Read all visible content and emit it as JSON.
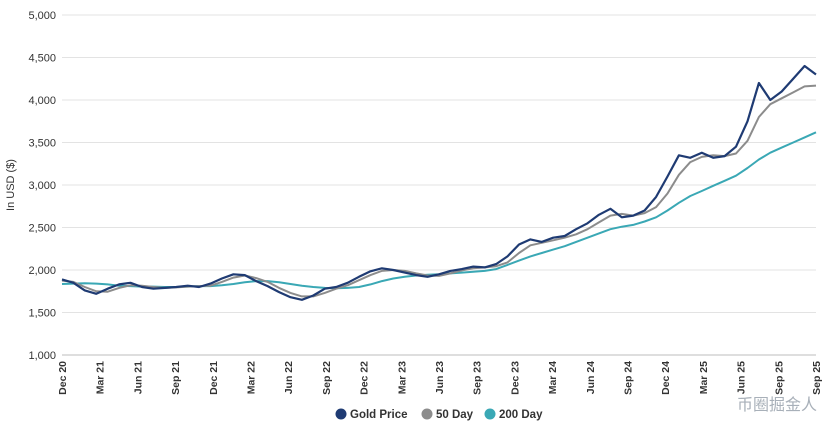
{
  "chart_data": {
    "type": "line",
    "title": "",
    "ylabel": "In USD ($)",
    "xlabel": "",
    "ylim": [
      1000,
      5000
    ],
    "y_ticks": [
      "1,000",
      "1,500",
      "2,000",
      "2,500",
      "3,000",
      "3,500",
      "4,000",
      "4,500",
      "5,000"
    ],
    "x_tick_labels": [
      "Dec 20",
      "Mar 21",
      "Jun 21",
      "Sep 21",
      "Dec 21",
      "Mar 22",
      "Jun 22",
      "Sep 22",
      "Dec 22",
      "Mar 23",
      "Jun 23",
      "Sep 23",
      "Dec 23",
      "Mar 24",
      "Jun 24",
      "Sep 24",
      "Dec 24",
      "Mar 25",
      "Jun 25",
      "Sep 25",
      "Sep 25"
    ],
    "grid": true,
    "legend": "bottom-center",
    "series": [
      {
        "name": "Gold Price",
        "color": "#1f3b73",
        "values": [
          1890,
          1850,
          1760,
          1720,
          1780,
          1830,
          1850,
          1800,
          1780,
          1790,
          1800,
          1815,
          1800,
          1840,
          1900,
          1950,
          1940,
          1870,
          1810,
          1740,
          1680,
          1650,
          1700,
          1780,
          1800,
          1850,
          1920,
          1985,
          2020,
          2000,
          1970,
          1940,
          1920,
          1950,
          1990,
          2010,
          2040,
          2030,
          2070,
          2160,
          2300,
          2360,
          2330,
          2380,
          2400,
          2480,
          2550,
          2650,
          2720,
          2620,
          2640,
          2700,
          2860,
          3100,
          3350,
          3320,
          3380,
          3320,
          3340,
          3450,
          3750,
          4200,
          4000,
          4100,
          4250,
          4400,
          4300
        ]
      },
      {
        "name": "50 Day",
        "color": "#8c8c8c",
        "values": [
          1875,
          1860,
          1800,
          1750,
          1745,
          1790,
          1820,
          1815,
          1800,
          1790,
          1795,
          1805,
          1810,
          1815,
          1860,
          1910,
          1935,
          1905,
          1860,
          1790,
          1730,
          1690,
          1690,
          1730,
          1780,
          1820,
          1880,
          1940,
          1990,
          2000,
          1990,
          1960,
          1935,
          1930,
          1960,
          1995,
          2020,
          2030,
          2045,
          2090,
          2200,
          2290,
          2320,
          2350,
          2380,
          2420,
          2480,
          2560,
          2640,
          2660,
          2640,
          2670,
          2740,
          2900,
          3120,
          3270,
          3330,
          3350,
          3340,
          3370,
          3520,
          3800,
          3950,
          4020,
          4090,
          4160,
          4170
        ]
      },
      {
        "name": "200 Day",
        "color": "#3aa8b5",
        "values": [
          1835,
          1840,
          1845,
          1840,
          1830,
          1815,
          1810,
          1805,
          1805,
          1800,
          1800,
          1805,
          1810,
          1810,
          1820,
          1835,
          1855,
          1870,
          1870,
          1855,
          1835,
          1815,
          1800,
          1790,
          1785,
          1790,
          1800,
          1830,
          1870,
          1900,
          1920,
          1935,
          1945,
          1950,
          1960,
          1970,
          1980,
          1990,
          2010,
          2060,
          2110,
          2160,
          2200,
          2240,
          2280,
          2330,
          2380,
          2430,
          2480,
          2510,
          2530,
          2570,
          2620,
          2700,
          2790,
          2870,
          2930,
          2990,
          3050,
          3110,
          3200,
          3300,
          3380,
          3440,
          3500,
          3560,
          3620
        ]
      }
    ]
  },
  "watermark": "币圈掘金人"
}
